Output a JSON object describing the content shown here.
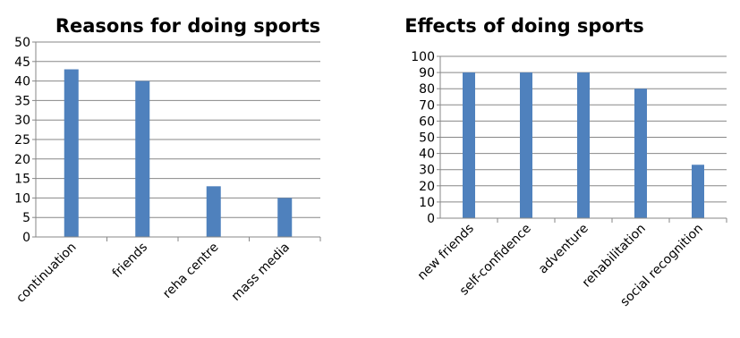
{
  "bar_color": "#4F81BD",
  "grid_color": "#878787",
  "chart_data": [
    {
      "type": "bar",
      "title": "Reasons for doing sports",
      "categories": [
        "continuation",
        "friends",
        "reha centre",
        "mass media"
      ],
      "values": [
        43,
        40,
        13,
        10
      ],
      "ylim": [
        0,
        50
      ],
      "yticks": [
        0,
        5,
        10,
        15,
        20,
        25,
        30,
        35,
        40,
        45,
        50
      ],
      "grid": true,
      "xlabel": "",
      "ylabel": ""
    },
    {
      "type": "bar",
      "title": "Effects of doing sports",
      "categories": [
        "new friends",
        "self-confidence",
        "adventure",
        "rehabilitation",
        "social recognition"
      ],
      "values": [
        90,
        90,
        90,
        80,
        33
      ],
      "ylim": [
        0,
        100
      ],
      "yticks": [
        0,
        10,
        20,
        30,
        40,
        50,
        60,
        70,
        80,
        90,
        100
      ],
      "grid": true,
      "xlabel": "",
      "ylabel": ""
    }
  ]
}
